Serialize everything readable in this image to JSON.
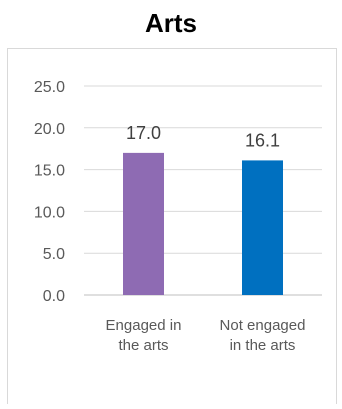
{
  "chart_data": {
    "type": "bar",
    "title": "Arts",
    "categories": [
      [
        "Engaged in",
        "the arts"
      ],
      [
        "Not engaged",
        "in the arts"
      ]
    ],
    "values": [
      17.0,
      16.1
    ],
    "value_labels": [
      "17.0",
      "16.1"
    ],
    "bar_colors": [
      "#8e6bb3",
      "#0070c0"
    ],
    "ylim": [
      0,
      25
    ],
    "yticks": [
      "0.0",
      "5.0",
      "10.0",
      "15.0",
      "20.0",
      "25.0"
    ],
    "grid": true,
    "legend": "none"
  }
}
